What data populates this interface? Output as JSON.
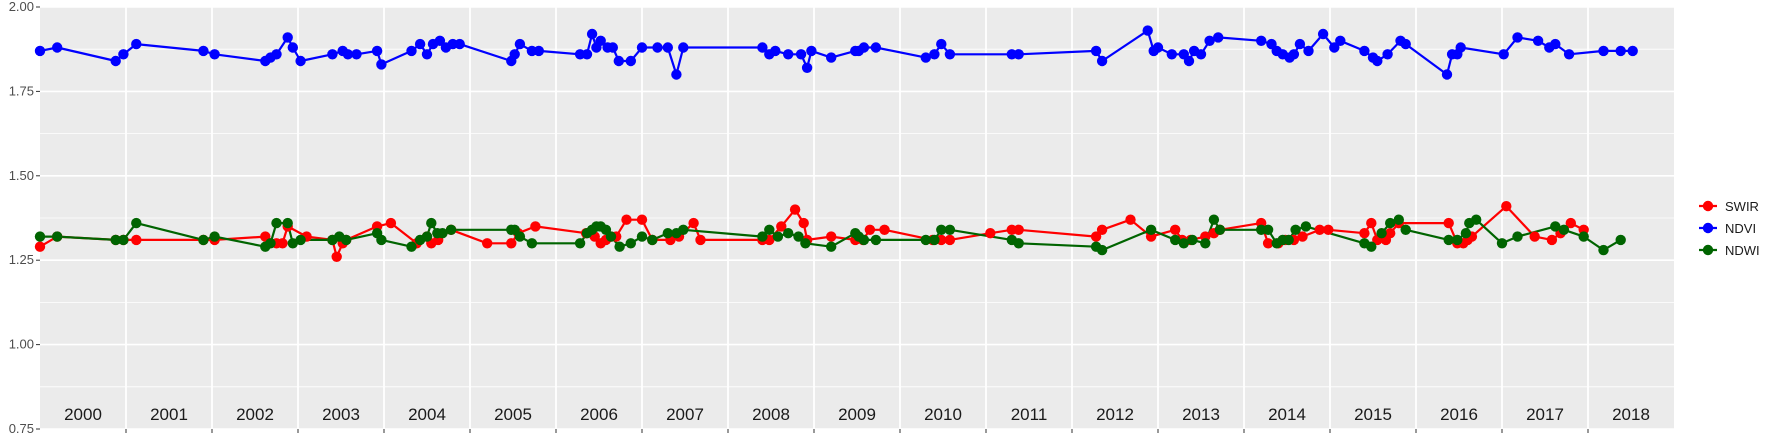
{
  "chart_data": {
    "type": "line",
    "title": "",
    "xlabel": "",
    "ylabel": "",
    "xlim": [
      2000.0,
      2019.0
    ],
    "ylim": [
      0.75,
      2.0
    ],
    "yticks": [
      0.75,
      1.0,
      1.25,
      1.5,
      1.75,
      2.0
    ],
    "ytick_labels": [
      "0.75",
      "1.00",
      "1.25",
      "1.50",
      "1.75",
      "2.00"
    ],
    "year_labels": [
      "2000",
      "2001",
      "2002",
      "2003",
      "2004",
      "2005",
      "2006",
      "2007",
      "2008",
      "2009",
      "2010",
      "2011",
      "2012",
      "2013",
      "2014",
      "2015",
      "2016",
      "2017",
      "2018"
    ],
    "grid": true,
    "legend_position": "right",
    "background": "#ebebeb",
    "series": [
      {
        "name": "SWIR",
        "color": "#ff0000",
        "x": [
          2000.0,
          2000.2,
          2000.88,
          2000.97,
          2001.12,
          2001.9,
          2002.03,
          2002.62,
          2002.75,
          2002.82,
          2002.88,
          2003.1,
          2003.4,
          2003.45,
          2003.52,
          2003.56,
          2003.92,
          2004.08,
          2004.38,
          2004.5,
          2004.55,
          2004.63,
          2004.78,
          2005.2,
          2005.48,
          2005.56,
          2005.76,
          2006.35,
          2006.45,
          2006.52,
          2006.58,
          2006.64,
          2006.7,
          2006.82,
          2007.0,
          2007.12,
          2007.33,
          2007.43,
          2007.6,
          2007.68,
          2008.4,
          2008.48,
          2008.62,
          2008.78,
          2008.88,
          2008.92,
          2009.2,
          2009.48,
          2009.57,
          2009.65,
          2009.82,
          2010.38,
          2010.48,
          2010.58,
          2011.05,
          2011.3,
          2011.38,
          2012.28,
          2012.35,
          2012.68,
          2012.92,
          2013.2,
          2013.28,
          2013.38,
          2013.55,
          2013.65,
          2013.72,
          2014.2,
          2014.28,
          2014.4,
          2014.48,
          2014.58,
          2014.68,
          2014.88,
          2014.98,
          2015.4,
          2015.48,
          2015.55,
          2015.65,
          2015.7,
          2015.8,
          2016.38,
          2016.48,
          2016.55,
          2016.6,
          2016.65,
          2017.05,
          2017.38,
          2017.58,
          2017.68,
          2017.8,
          2017.95
        ],
        "values": [
          1.29,
          1.32,
          1.31,
          1.31,
          1.31,
          1.31,
          1.31,
          1.32,
          1.3,
          1.3,
          1.35,
          1.32,
          1.31,
          1.26,
          1.3,
          1.31,
          1.35,
          1.36,
          1.3,
          1.32,
          1.3,
          1.31,
          1.34,
          1.3,
          1.3,
          1.33,
          1.35,
          1.33,
          1.32,
          1.3,
          1.31,
          1.32,
          1.32,
          1.37,
          1.37,
          1.31,
          1.31,
          1.32,
          1.36,
          1.31,
          1.31,
          1.31,
          1.35,
          1.4,
          1.36,
          1.31,
          1.32,
          1.31,
          1.31,
          1.34,
          1.34,
          1.31,
          1.31,
          1.31,
          1.33,
          1.34,
          1.34,
          1.32,
          1.34,
          1.37,
          1.32,
          1.34,
          1.31,
          1.31,
          1.32,
          1.33,
          1.34,
          1.36,
          1.3,
          1.3,
          1.31,
          1.31,
          1.32,
          1.34,
          1.34,
          1.33,
          1.36,
          1.31,
          1.31,
          1.33,
          1.36,
          1.36,
          1.3,
          1.3,
          1.31,
          1.32,
          1.41,
          1.32,
          1.31,
          1.33,
          1.36,
          1.34
        ]
      },
      {
        "name": "NDVI",
        "color": "#0000ff",
        "x": [
          2000.0,
          2000.2,
          2000.88,
          2000.97,
          2001.12,
          2001.9,
          2002.03,
          2002.62,
          2002.68,
          2002.75,
          2002.88,
          2002.94,
          2003.03,
          2003.4,
          2003.52,
          2003.58,
          2003.68,
          2003.92,
          2003.97,
          2004.32,
          2004.42,
          2004.5,
          2004.57,
          2004.65,
          2004.72,
          2004.8,
          2004.88,
          2005.48,
          2005.52,
          2005.58,
          2005.72,
          2005.8,
          2006.28,
          2006.36,
          2006.42,
          2006.47,
          2006.52,
          2006.6,
          2006.66,
          2006.73,
          2006.87,
          2007.0,
          2007.18,
          2007.3,
          2007.4,
          2007.48,
          2008.4,
          2008.48,
          2008.55,
          2008.7,
          2008.85,
          2008.92,
          2008.97,
          2009.2,
          2009.48,
          2009.52,
          2009.58,
          2009.72,
          2010.3,
          2010.4,
          2010.48,
          2010.58,
          2011.3,
          2011.38,
          2012.28,
          2012.35,
          2012.88,
          2012.95,
          2013.0,
          2013.16,
          2013.3,
          2013.36,
          2013.42,
          2013.5,
          2013.6,
          2013.7,
          2014.2,
          2014.32,
          2014.38,
          2014.45,
          2014.53,
          2014.58,
          2014.65,
          2014.75,
          2014.92,
          2015.05,
          2015.12,
          2015.4,
          2015.5,
          2015.55,
          2015.67,
          2015.82,
          2015.88,
          2016.36,
          2016.42,
          2016.48,
          2016.52,
          2017.02,
          2017.18,
          2017.42,
          2017.55,
          2017.62,
          2017.78,
          2018.18,
          2018.38,
          2018.52
        ],
        "values": [
          1.87,
          1.88,
          1.84,
          1.86,
          1.89,
          1.87,
          1.86,
          1.84,
          1.85,
          1.86,
          1.91,
          1.88,
          1.84,
          1.86,
          1.87,
          1.86,
          1.86,
          1.87,
          1.83,
          1.87,
          1.89,
          1.86,
          1.89,
          1.9,
          1.88,
          1.89,
          1.89,
          1.84,
          1.86,
          1.89,
          1.87,
          1.87,
          1.86,
          1.86,
          1.92,
          1.88,
          1.9,
          1.88,
          1.88,
          1.84,
          1.84,
          1.88,
          1.88,
          1.88,
          1.8,
          1.88,
          1.88,
          1.86,
          1.87,
          1.86,
          1.86,
          1.82,
          1.87,
          1.85,
          1.87,
          1.87,
          1.88,
          1.88,
          1.85,
          1.86,
          1.89,
          1.86,
          1.86,
          1.86,
          1.87,
          1.84,
          1.93,
          1.87,
          1.88,
          1.86,
          1.86,
          1.84,
          1.87,
          1.86,
          1.9,
          1.91,
          1.9,
          1.89,
          1.87,
          1.86,
          1.85,
          1.86,
          1.89,
          1.87,
          1.92,
          1.88,
          1.9,
          1.87,
          1.85,
          1.84,
          1.86,
          1.9,
          1.89,
          1.8,
          1.86,
          1.86,
          1.88,
          1.86,
          1.91,
          1.9,
          1.88,
          1.89,
          1.86,
          1.87,
          1.87,
          1.87
        ]
      },
      {
        "name": "NDWI",
        "color": "#006400",
        "x": [
          2000.0,
          2000.2,
          2000.88,
          2000.97,
          2001.12,
          2001.9,
          2002.03,
          2002.62,
          2002.68,
          2002.75,
          2002.88,
          2002.94,
          2003.03,
          2003.4,
          2003.48,
          2003.56,
          2003.92,
          2003.97,
          2004.32,
          2004.42,
          2004.5,
          2004.55,
          2004.62,
          2004.68,
          2004.78,
          2005.48,
          2005.52,
          2005.58,
          2005.72,
          2006.28,
          2006.36,
          2006.42,
          2006.47,
          2006.52,
          2006.58,
          2006.64,
          2006.74,
          2006.87,
          2007.0,
          2007.12,
          2007.3,
          2007.4,
          2007.48,
          2008.4,
          2008.48,
          2008.58,
          2008.7,
          2008.82,
          2008.9,
          2009.2,
          2009.48,
          2009.52,
          2009.58,
          2009.72,
          2010.3,
          2010.4,
          2010.48,
          2010.58,
          2011.3,
          2011.38,
          2012.28,
          2012.35,
          2012.92,
          2013.2,
          2013.3,
          2013.4,
          2013.55,
          2013.65,
          2013.72,
          2014.2,
          2014.28,
          2014.38,
          2014.45,
          2014.52,
          2014.6,
          2014.72,
          2015.4,
          2015.48,
          2015.6,
          2015.7,
          2015.8,
          2015.88,
          2016.38,
          2016.48,
          2016.58,
          2016.62,
          2016.7,
          2017.0,
          2017.18,
          2017.62,
          2017.72,
          2017.95,
          2018.18,
          2018.38
        ],
        "values": [
          1.32,
          1.32,
          1.31,
          1.31,
          1.36,
          1.31,
          1.32,
          1.29,
          1.3,
          1.36,
          1.36,
          1.3,
          1.31,
          1.31,
          1.32,
          1.31,
          1.33,
          1.31,
          1.29,
          1.31,
          1.32,
          1.36,
          1.33,
          1.33,
          1.34,
          1.34,
          1.34,
          1.32,
          1.3,
          1.3,
          1.33,
          1.34,
          1.35,
          1.35,
          1.34,
          1.32,
          1.29,
          1.3,
          1.32,
          1.31,
          1.33,
          1.33,
          1.34,
          1.32,
          1.34,
          1.32,
          1.33,
          1.32,
          1.3,
          1.29,
          1.33,
          1.32,
          1.31,
          1.31,
          1.31,
          1.31,
          1.34,
          1.34,
          1.31,
          1.3,
          1.29,
          1.28,
          1.34,
          1.31,
          1.3,
          1.31,
          1.3,
          1.37,
          1.34,
          1.34,
          1.34,
          1.3,
          1.31,
          1.31,
          1.34,
          1.35,
          1.3,
          1.29,
          1.33,
          1.36,
          1.37,
          1.34,
          1.31,
          1.31,
          1.33,
          1.36,
          1.37,
          1.3,
          1.32,
          1.35,
          1.34,
          1.32,
          1.28,
          1.31
        ]
      }
    ]
  }
}
